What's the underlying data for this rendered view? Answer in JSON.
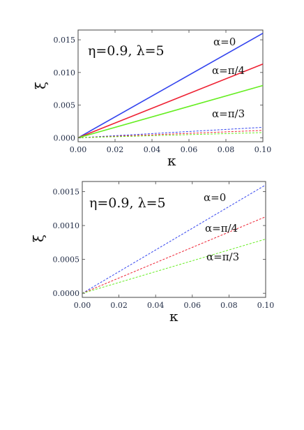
{
  "chart_data": [
    {
      "type": "line",
      "title": "η=0.9, λ=5",
      "xlabel": "κ",
      "ylabel": "ξ",
      "xlim": [
        0,
        0.1
      ],
      "ylim": [
        -0.0006,
        0.0165
      ],
      "x_ticks": [
        0.0,
        0.02,
        0.04,
        0.06,
        0.08,
        0.1
      ],
      "x_tick_labels": [
        "0.00",
        "0.02",
        "0.04",
        "0.06",
        "0.08",
        "0.10"
      ],
      "y_ticks": [
        0.0,
        0.005,
        0.01,
        0.015
      ],
      "y_tick_labels": [
        "0.000",
        "0.005",
        "0.010",
        "0.015"
      ],
      "grid": false,
      "series": [
        {
          "name": "α=0",
          "style": "solid",
          "color": "#3344ee",
          "x": [
            0,
            0.1
          ],
          "y": [
            0,
            0.016
          ]
        },
        {
          "name": "α=π/4",
          "style": "solid",
          "color": "#ee2233",
          "x": [
            0,
            0.1
          ],
          "y": [
            0,
            0.0113
          ]
        },
        {
          "name": "α=π/3",
          "style": "solid",
          "color": "#66ee22",
          "x": [
            0,
            0.1
          ],
          "y": [
            0,
            0.008
          ]
        },
        {
          "style": "dashed",
          "color": "#3344ee",
          "x": [
            0,
            0.1
          ],
          "y": [
            0,
            0.0016
          ]
        },
        {
          "style": "dashed",
          "color": "#ee2233",
          "x": [
            0,
            0.1
          ],
          "y": [
            0,
            0.00113
          ]
        },
        {
          "style": "dashed",
          "color": "#66ee22",
          "x": [
            0,
            0.1
          ],
          "y": [
            0,
            0.0008
          ]
        }
      ],
      "annotations": [
        "α=0",
        "α=π/4",
        "α=π/3"
      ]
    },
    {
      "type": "line",
      "title": "η=0.9, λ=5",
      "xlabel": "κ",
      "ylabel": "ξ",
      "xlim": [
        0,
        0.1
      ],
      "ylim": [
        -6e-05,
        0.00165
      ],
      "x_ticks": [
        0.0,
        0.02,
        0.04,
        0.06,
        0.08,
        0.1
      ],
      "x_tick_labels": [
        "0.00",
        "0.02",
        "0.04",
        "0.06",
        "0.08",
        "0.10"
      ],
      "y_ticks": [
        0.0,
        0.0005,
        0.001,
        0.0015
      ],
      "y_tick_labels": [
        "0.0000",
        "0.0005",
        "0.0010",
        "0.0015"
      ],
      "grid": false,
      "series": [
        {
          "name": "α=0",
          "style": "dashed",
          "color": "#3344ee",
          "x": [
            0,
            0.1
          ],
          "y": [
            0,
            0.0016
          ]
        },
        {
          "name": "α=π/4",
          "style": "dashed",
          "color": "#ee2233",
          "x": [
            0,
            0.1
          ],
          "y": [
            0,
            0.00113
          ]
        },
        {
          "name": "α=π/3",
          "style": "dashed",
          "color": "#66ee22",
          "x": [
            0,
            0.1
          ],
          "y": [
            0,
            0.0008
          ]
        }
      ],
      "annotations": [
        "α=0",
        "α=π/4",
        "α=π/3"
      ]
    }
  ]
}
